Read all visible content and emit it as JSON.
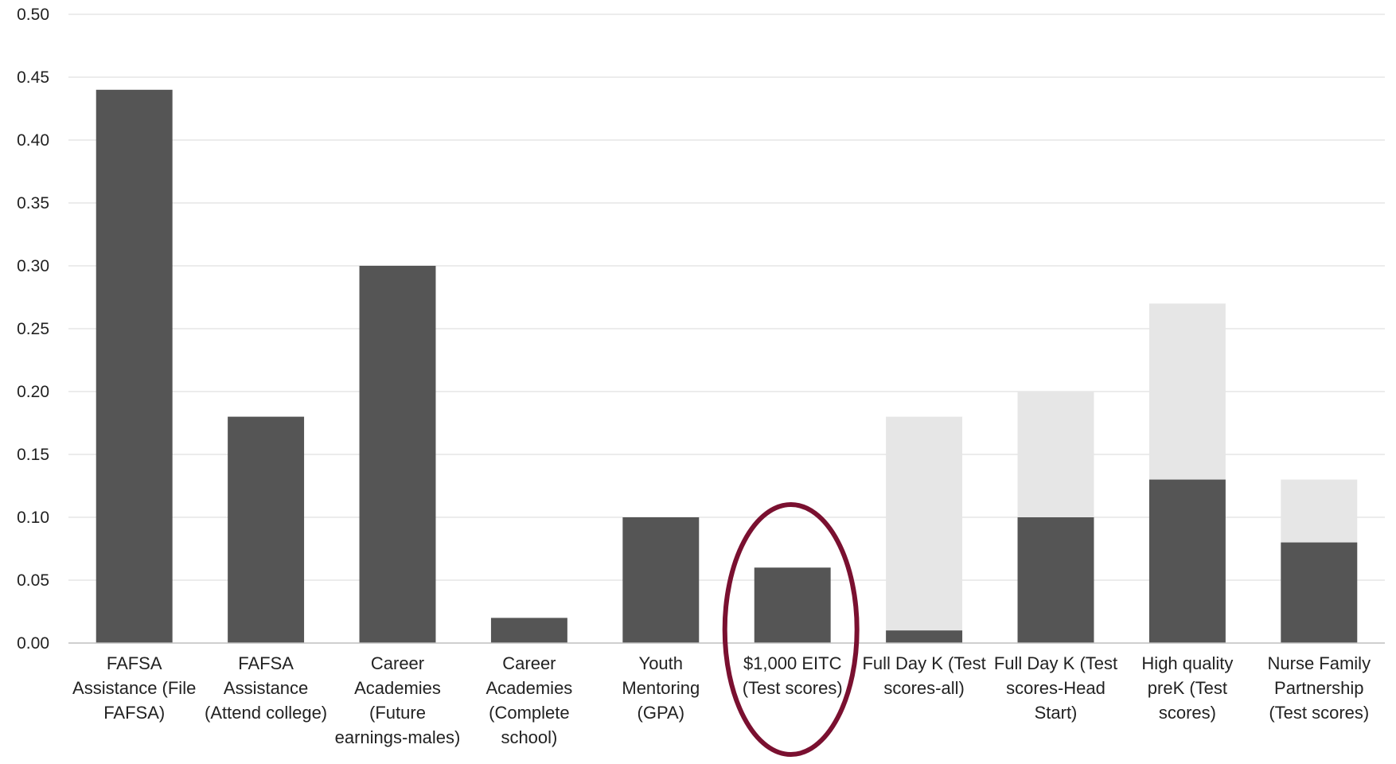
{
  "chart_data": {
    "type": "bar",
    "title": "",
    "xlabel": "",
    "ylabel": "",
    "ylim": [
      0,
      0.5
    ],
    "yticks": [
      "0.00",
      "0.05",
      "0.10",
      "0.15",
      "0.20",
      "0.25",
      "0.30",
      "0.35",
      "0.40",
      "0.45",
      "0.50"
    ],
    "grid": true,
    "legend": "none",
    "categories": [
      [
        "FAFSA",
        "Assistance (File",
        "FAFSA)"
      ],
      [
        "FAFSA",
        "Assistance",
        "(Attend college)"
      ],
      [
        "Career",
        "Academies",
        "(Future",
        "earnings-males)"
      ],
      [
        "Career",
        "Academies",
        "(Complete",
        "school)"
      ],
      [
        "Youth",
        "Mentoring",
        "(GPA)"
      ],
      [
        "$1,000 EITC",
        "(Test scores)"
      ],
      [
        "Full Day K (Test",
        "scores-all)"
      ],
      [
        "Full Day K (Test",
        "scores-Head",
        "Start)"
      ],
      [
        "High quality",
        "preK (Test",
        "scores)"
      ],
      [
        "Nurse Family",
        "Partnership",
        "(Test scores)"
      ]
    ],
    "series": [
      {
        "values": [
          0.44,
          0.18,
          0.3,
          0.02,
          0.1,
          0.06,
          0.01,
          0.1,
          0.13,
          0.08
        ],
        "color": "#555555"
      },
      {
        "values": [
          null,
          null,
          null,
          null,
          null,
          null,
          0.18,
          0.2,
          0.27,
          0.13
        ],
        "color": "#e6e6e6"
      }
    ],
    "annotations": [
      {
        "type": "ellipse",
        "target_category_index": 5,
        "color": "#7a1030"
      }
    ]
  },
  "colors": {
    "gridline": "#d9d9d9",
    "axis": "#bfbfbf",
    "text": "#222222"
  }
}
